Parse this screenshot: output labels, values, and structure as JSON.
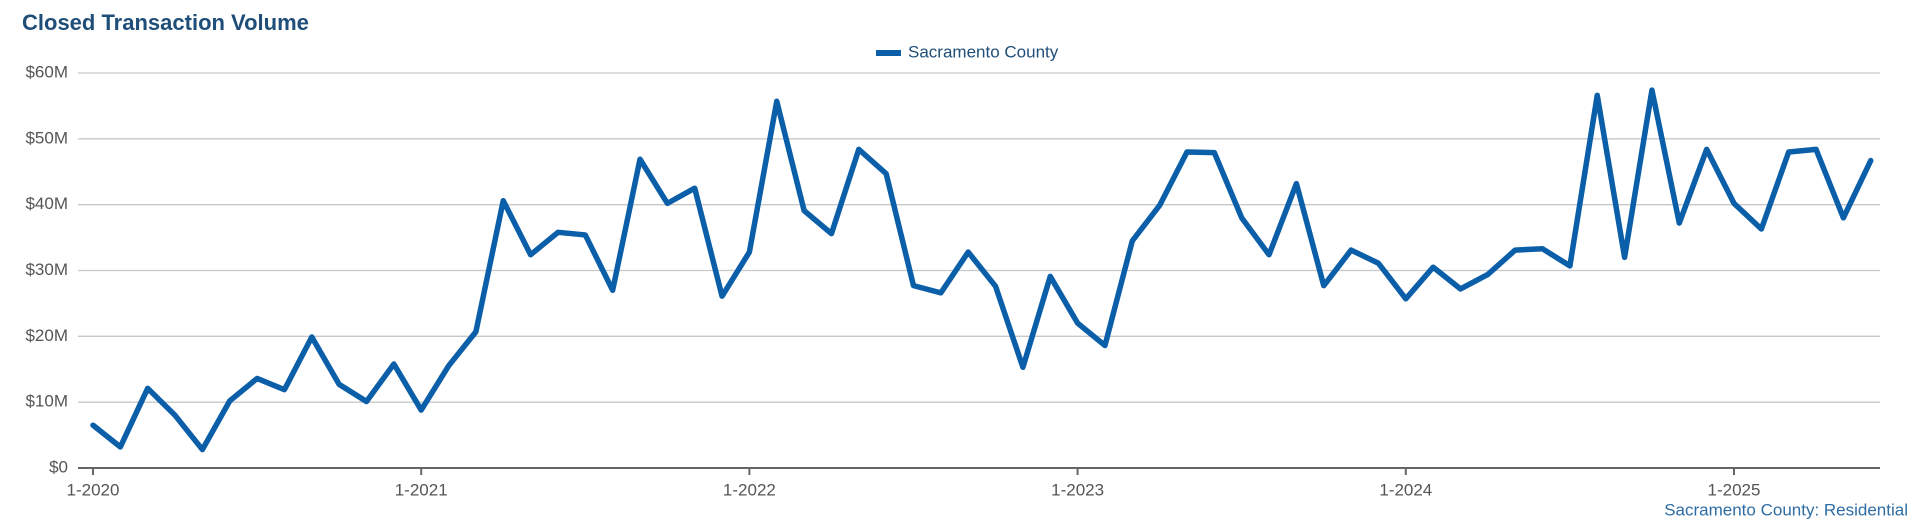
{
  "chart_data": {
    "type": "line",
    "title": "Closed Transaction Volume",
    "footnote": "Sacramento County: Residential",
    "categories": [
      "1-2020",
      null,
      null,
      null,
      null,
      null,
      null,
      null,
      null,
      null,
      null,
      null,
      "1-2021",
      null,
      null,
      null,
      null,
      null,
      null,
      null,
      null,
      null,
      null,
      null,
      "1-2022",
      null,
      null,
      null,
      null,
      null,
      null,
      null,
      null,
      null,
      null,
      null,
      "1-2023",
      null,
      null,
      null,
      null,
      null,
      null,
      null,
      null,
      null,
      null,
      null,
      "1-2024",
      null,
      null,
      null,
      null,
      null,
      null,
      null,
      null,
      null,
      null,
      null,
      "1-2025",
      null,
      null,
      null,
      null,
      null
    ],
    "series": [
      {
        "name": "Sacramento County",
        "color": "#0b5ea8",
        "values": [
          6.5,
          3.2,
          12.1,
          8.0,
          2.8,
          10.2,
          13.6,
          11.9,
          19.9,
          12.7,
          10.1,
          15.8,
          8.8,
          15.5,
          20.7,
          40.6,
          32.4,
          35.8,
          35.4,
          27.0,
          46.9,
          40.2,
          42.5,
          26.1,
          32.8,
          55.7,
          39.1,
          35.6,
          48.4,
          44.7,
          27.7,
          26.6,
          32.8,
          27.6,
          15.3,
          29.1,
          22.0,
          18.6,
          34.5,
          39.9,
          48.0,
          47.9,
          38.0,
          32.4,
          43.2,
          27.7,
          33.1,
          31.1,
          25.7,
          30.5,
          27.2,
          29.4,
          33.1,
          33.3,
          30.7,
          56.6,
          32.0,
          57.4,
          37.2,
          48.4,
          40.2,
          36.3,
          48.0,
          48.4,
          38.0,
          46.7
        ]
      }
    ],
    "ylim": [
      0,
      60
    ],
    "yticks": [
      {
        "value": 0,
        "label": "$0"
      },
      {
        "value": 10,
        "label": "$10M"
      },
      {
        "value": 20,
        "label": "$20M"
      },
      {
        "value": 30,
        "label": "$30M"
      },
      {
        "value": 40,
        "label": "$40M"
      },
      {
        "value": 50,
        "label": "$50M"
      },
      {
        "value": 60,
        "label": "$60M"
      }
    ],
    "grid": true,
    "legend": "top"
  }
}
